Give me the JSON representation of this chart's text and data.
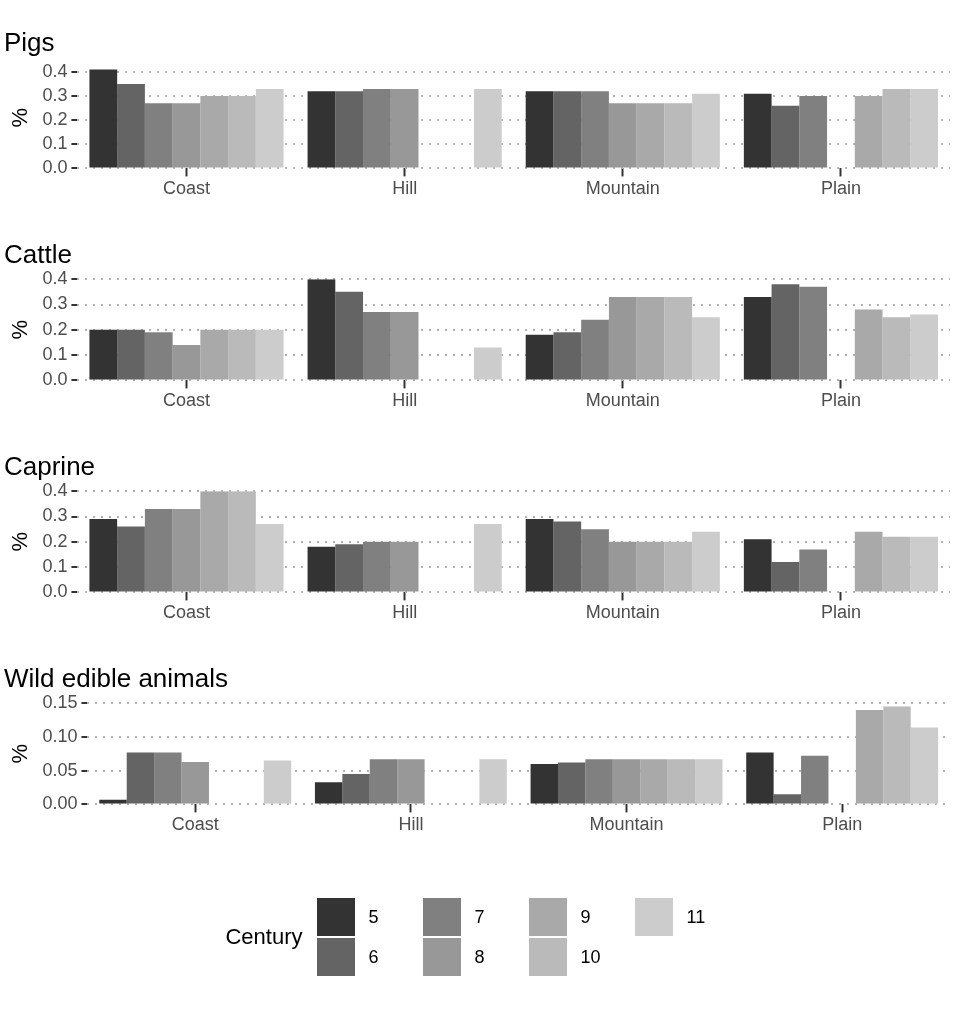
{
  "chart_data": [
    {
      "type": "bar",
      "title": "Pigs",
      "ylabel": "%",
      "categories": [
        "Coast",
        "Hill",
        "Mountain",
        "Plain"
      ],
      "ylim": [
        0,
        0.42
      ],
      "yticks": [
        {
          "value": 0,
          "label": "0.0"
        },
        {
          "value": 0.1,
          "label": "0.1"
        },
        {
          "value": 0.2,
          "label": "0.2"
        },
        {
          "value": 0.3,
          "label": "0.3"
        },
        {
          "value": 0.4,
          "label": "0.4"
        }
      ],
      "grid": "y",
      "legend": "bottom",
      "legend_title": "Century",
      "series": [
        {
          "name": "5",
          "color": "#333333",
          "values": [
            0.41,
            0.32,
            0.32,
            0.31
          ]
        },
        {
          "name": "6",
          "color": "#646464",
          "values": [
            0.35,
            0.32,
            0.32,
            0.26
          ]
        },
        {
          "name": "7",
          "color": "#808080",
          "values": [
            0.27,
            0.33,
            0.32,
            0.3
          ]
        },
        {
          "name": "8",
          "color": "#989898",
          "values": [
            0.27,
            0.33,
            0.27,
            0
          ]
        },
        {
          "name": "9",
          "color": "#a9a9a9",
          "values": [
            0.3,
            null,
            0.27,
            0.3
          ]
        },
        {
          "name": "10",
          "color": "#bababa",
          "values": [
            0.3,
            null,
            0.27,
            0.33
          ]
        },
        {
          "name": "11",
          "color": "#cccccc",
          "values": [
            0.33,
            0.33,
            0.31,
            0.33
          ]
        }
      ]
    },
    {
      "type": "bar",
      "title": "Cattle",
      "ylabel": "%",
      "categories": [
        "Coast",
        "Hill",
        "Mountain",
        "Plain"
      ],
      "ylim": [
        0,
        0.4
      ],
      "yticks": [
        {
          "value": 0,
          "label": "0.0"
        },
        {
          "value": 0.1,
          "label": "0.1"
        },
        {
          "value": 0.2,
          "label": "0.2"
        },
        {
          "value": 0.3,
          "label": "0.3"
        },
        {
          "value": 0.4,
          "label": "0.4"
        }
      ],
      "grid": "y",
      "legend": false,
      "series": [
        {
          "name": "5",
          "color": "#333333",
          "values": [
            0.2,
            0.4,
            0.18,
            0.33
          ]
        },
        {
          "name": "6",
          "color": "#646464",
          "values": [
            0.2,
            0.35,
            0.19,
            0.38
          ]
        },
        {
          "name": "7",
          "color": "#808080",
          "values": [
            0.19,
            0.27,
            0.24,
            0.37
          ]
        },
        {
          "name": "8",
          "color": "#989898",
          "values": [
            0.14,
            0.27,
            0.33,
            0
          ]
        },
        {
          "name": "9",
          "color": "#a9a9a9",
          "values": [
            0.2,
            null,
            0.33,
            0.28
          ]
        },
        {
          "name": "10",
          "color": "#bababa",
          "values": [
            0.2,
            null,
            0.33,
            0.25
          ]
        },
        {
          "name": "11",
          "color": "#cccccc",
          "values": [
            0.2,
            0.13,
            0.25,
            0.26
          ]
        }
      ]
    },
    {
      "type": "bar",
      "title": "Caprine",
      "ylabel": "%",
      "categories": [
        "Coast",
        "Hill",
        "Mountain",
        "Plain"
      ],
      "ylim": [
        0,
        0.4
      ],
      "yticks": [
        {
          "value": 0,
          "label": "0.0"
        },
        {
          "value": 0.1,
          "label": "0.1"
        },
        {
          "value": 0.2,
          "label": "0.2"
        },
        {
          "value": 0.3,
          "label": "0.3"
        },
        {
          "value": 0.4,
          "label": "0.4"
        }
      ],
      "grid": "y",
      "legend": false,
      "series": [
        {
          "name": "5",
          "color": "#333333",
          "values": [
            0.29,
            0.18,
            0.29,
            0.21
          ]
        },
        {
          "name": "6",
          "color": "#646464",
          "values": [
            0.26,
            0.19,
            0.28,
            0.12
          ]
        },
        {
          "name": "7",
          "color": "#808080",
          "values": [
            0.33,
            0.2,
            0.25,
            0.17
          ]
        },
        {
          "name": "8",
          "color": "#989898",
          "values": [
            0.33,
            0.2,
            0.2,
            0
          ]
        },
        {
          "name": "9",
          "color": "#a9a9a9",
          "values": [
            0.4,
            null,
            0.2,
            0.24
          ]
        },
        {
          "name": "10",
          "color": "#bababa",
          "values": [
            0.4,
            null,
            0.2,
            0.22
          ]
        },
        {
          "name": "11",
          "color": "#cccccc",
          "values": [
            0.27,
            0.27,
            0.24,
            0.22
          ]
        }
      ]
    },
    {
      "type": "bar",
      "title": "Wild edible animals",
      "ylabel": "%",
      "categories": [
        "Coast",
        "Hill",
        "Mountain",
        "Plain"
      ],
      "ylim": [
        0,
        0.15
      ],
      "yticks": [
        {
          "value": 0,
          "label": "0.00"
        },
        {
          "value": 0.05,
          "label": "0.05"
        },
        {
          "value": 0.1,
          "label": "0.10"
        },
        {
          "value": 0.15,
          "label": "0.15"
        }
      ],
      "grid": "y",
      "legend": false,
      "series": [
        {
          "name": "5",
          "color": "#333333",
          "values": [
            0.007,
            0.033,
            0.06,
            0.077
          ]
        },
        {
          "name": "6",
          "color": "#646464",
          "values": [
            0.077,
            0.045,
            0.062,
            0.015
          ]
        },
        {
          "name": "7",
          "color": "#808080",
          "values": [
            0.077,
            0.067,
            0.067,
            0.072
          ]
        },
        {
          "name": "8",
          "color": "#989898",
          "values": [
            0.063,
            0.067,
            0.067,
            0
          ]
        },
        {
          "name": "9",
          "color": "#a9a9a9",
          "values": [
            null,
            null,
            0.067,
            0.14
          ]
        },
        {
          "name": "10",
          "color": "#bababa",
          "values": [
            null,
            null,
            0.067,
            0.145
          ]
        },
        {
          "name": "11",
          "color": "#cccccc",
          "values": [
            0.065,
            0.067,
            0.067,
            0.114
          ]
        }
      ]
    }
  ]
}
